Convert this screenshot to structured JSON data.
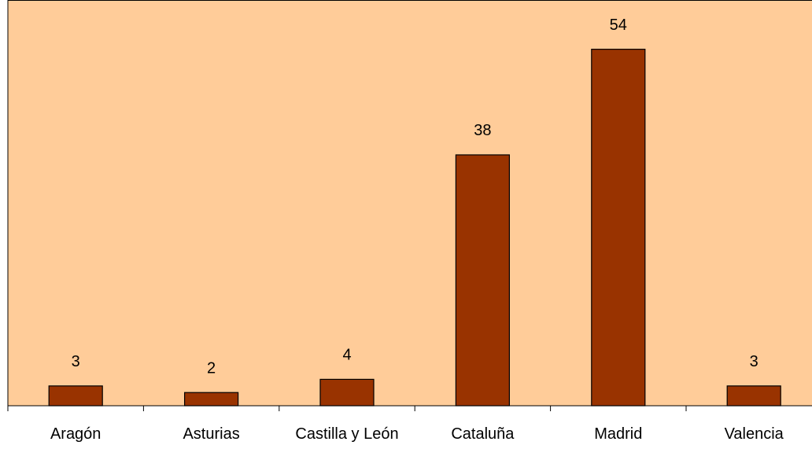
{
  "chart_data": {
    "type": "bar",
    "categories": [
      "Aragón",
      "Asturias",
      "Castilla y León",
      "Cataluña",
      "Madrid",
      "Valencia"
    ],
    "values": [
      3,
      2,
      4,
      38,
      54,
      3
    ],
    "color": "#993300",
    "background": "#ffcc99",
    "ylim": [
      0,
      61.4
    ],
    "grid": false
  }
}
